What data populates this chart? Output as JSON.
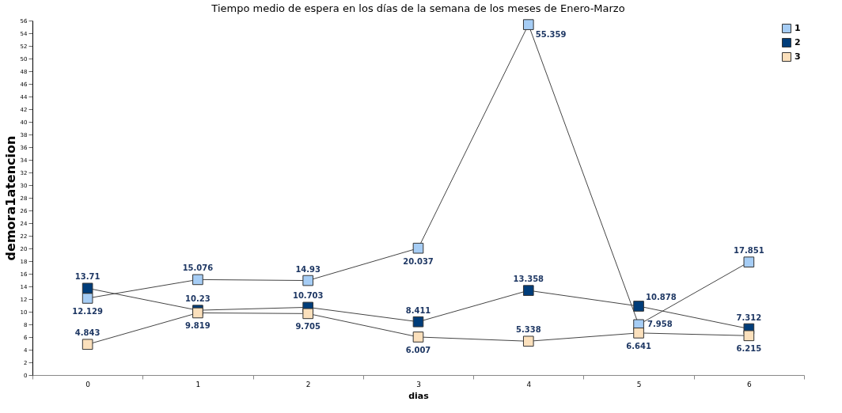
{
  "chart_data": {
    "type": "line",
    "title": "Tiempo medio de espera en los días de la semana de los meses de Enero-Marzo",
    "xlabel": "dias",
    "ylabel": "demora1atencion",
    "categories": [
      "0",
      "1",
      "2",
      "3",
      "4",
      "5",
      "6"
    ],
    "series": [
      {
        "name": "1",
        "color": "#a6cdf5",
        "values": [
          12.129,
          15.076,
          14.93,
          20.037,
          55.359,
          7.958,
          17.851
        ]
      },
      {
        "name": "2",
        "color": "#003d7a",
        "values": [
          13.71,
          10.23,
          10.703,
          8.411,
          13.358,
          10.878,
          7.312
        ]
      },
      {
        "name": "3",
        "color": "#fbe0bc",
        "values": [
          4.843,
          9.819,
          9.705,
          6.007,
          5.338,
          6.641,
          6.215
        ]
      }
    ],
    "ylim": [
      0,
      56
    ],
    "yticks": [
      0,
      2,
      4,
      6,
      8,
      10,
      12,
      14,
      16,
      18,
      20,
      22,
      24,
      26,
      28,
      30,
      32,
      34,
      36,
      38,
      40,
      42,
      44,
      46,
      48,
      50,
      52,
      54,
      56
    ],
    "grid": false,
    "legend": "top right",
    "marker": "square",
    "line_style": "solid",
    "data_labels": true
  }
}
